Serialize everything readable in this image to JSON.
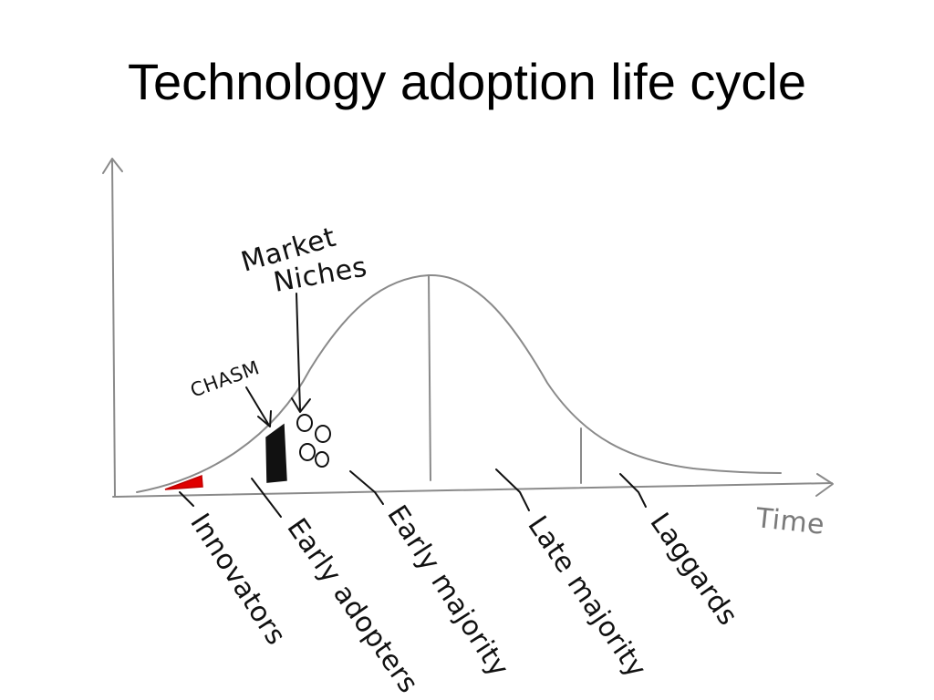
{
  "slide": {
    "title": "Technology adoption life cycle"
  },
  "diagram": {
    "x_axis_label": "Time",
    "callouts": {
      "market_niches_line1": "Market",
      "market_niches_line2": "Niches",
      "chasm": "CHASM"
    },
    "segments": [
      {
        "label": "Innovators"
      },
      {
        "label": "Early adopters"
      },
      {
        "label": "Early majority"
      },
      {
        "label": "Late majority"
      },
      {
        "label": "Laggards"
      }
    ],
    "colors": {
      "curve": "#8a8a8a",
      "innovators_fill": "#e00000",
      "chasm_fill": "#111111",
      "ink": "#111111"
    }
  }
}
